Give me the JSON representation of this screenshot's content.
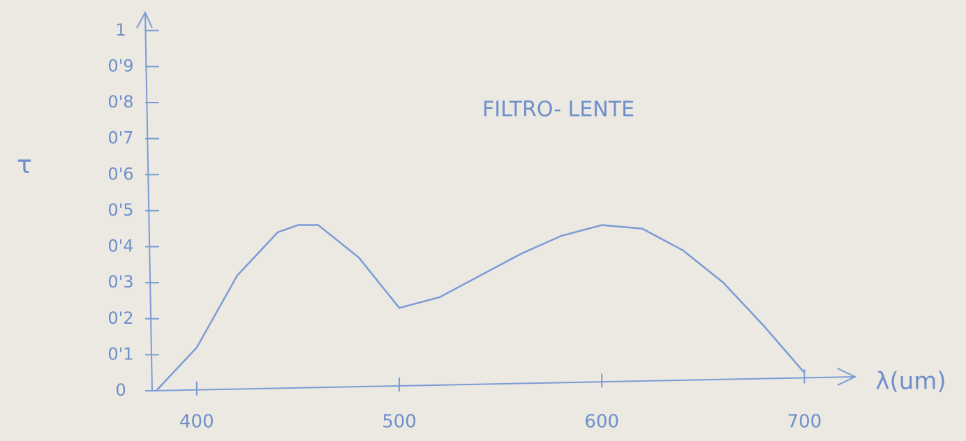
{
  "chart_data": {
    "type": "line",
    "title": "FILTRO- LENTE",
    "x_label": "λ(um)",
    "y_label": "τ",
    "x": [
      380,
      400,
      420,
      440,
      450,
      460,
      480,
      500,
      520,
      540,
      560,
      580,
      600,
      620,
      640,
      660,
      680,
      700
    ],
    "values": [
      0,
      0.12,
      0.32,
      0.44,
      0.46,
      0.46,
      0.37,
      0.23,
      0.26,
      0.32,
      0.38,
      0.43,
      0.46,
      0.45,
      0.39,
      0.3,
      0.18,
      0.05
    ],
    "color": "#7b9bd6",
    "xlim": [
      378,
      725
    ],
    "ylim": [
      0,
      1.05
    ],
    "xticks": [
      400,
      500,
      600,
      700
    ],
    "yticks": [
      0,
      {
        "value": 0.1,
        "label": "0'1"
      },
      {
        "value": 0.2,
        "label": "0'2"
      },
      {
        "value": 0.3,
        "label": "0'3"
      },
      {
        "value": 0.4,
        "label": "0'4"
      },
      {
        "value": 0.5,
        "label": "0'5"
      },
      {
        "value": 0.6,
        "label": "0'6"
      },
      {
        "value": 0.7,
        "label": "0'7"
      },
      {
        "value": 0.8,
        "label": "0'8"
      },
      {
        "value": 0.9,
        "label": "0'9"
      },
      1
    ],
    "grid": false
  }
}
